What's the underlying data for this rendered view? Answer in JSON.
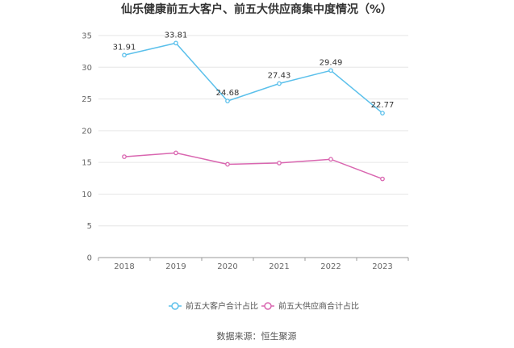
{
  "chart_data": {
    "type": "line",
    "title": "仙乐健康前五大客户、前五大供应商集中度情况（%）",
    "categories": [
      "2018",
      "2019",
      "2020",
      "2021",
      "2022",
      "2023"
    ],
    "ylim": [
      0,
      35
    ],
    "yticks": [
      0,
      5,
      10,
      15,
      20,
      25,
      30,
      35
    ],
    "grid": true,
    "legend_position": "bottom",
    "series": [
      {
        "name": "前五大客户合计占比",
        "values": [
          31.91,
          33.81,
          24.68,
          27.43,
          29.49,
          22.77
        ],
        "labels": [
          "31.91",
          "33.81",
          "24.68",
          "27.43",
          "29.49",
          "22.77"
        ],
        "color": "#5bc0eb",
        "show_labels": true
      },
      {
        "name": "前五大供应商合计占比",
        "values": [
          15.9,
          16.5,
          14.7,
          14.9,
          15.5,
          12.4
        ],
        "color": "#d966b0",
        "show_labels": false
      }
    ],
    "source": "数据来源：恒生聚源"
  }
}
